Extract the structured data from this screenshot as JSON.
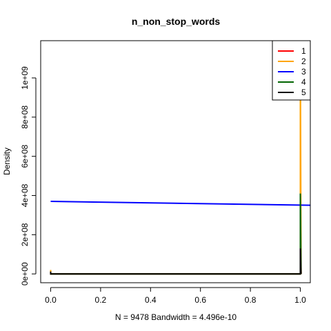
{
  "chart_data": {
    "type": "line",
    "title": "n_non_stop_words",
    "xlabel": "N = 9478   Bandwidth = 4.496e-10",
    "ylabel": "Density",
    "xlim": [
      -0.04,
      1.04
    ],
    "ylim": [
      -45000000,
      1190000000
    ],
    "x_ticks": [
      0.0,
      0.2,
      0.4,
      0.6,
      0.8,
      1.0
    ],
    "x_tick_labels": [
      "0.0",
      "0.2",
      "0.4",
      "0.6",
      "0.8",
      "1.0"
    ],
    "y_ticks": [
      0,
      200000000,
      400000000,
      600000000,
      800000000,
      1000000000
    ],
    "y_tick_labels": [
      "0e+00",
      "2e+08",
      "4e+08",
      "6e+08",
      "8e+08",
      "1e+09"
    ],
    "legend_position": "top-right",
    "series": [
      {
        "name": "1",
        "color": "#ff0000",
        "x": [
          0,
          0,
          0.003,
          0.997,
          1.0,
          1.0,
          1.003
        ],
        "y": [
          15000000,
          0,
          0,
          0,
          0,
          400000000,
          0
        ]
      },
      {
        "name": "2",
        "color": "#ffa500",
        "x": [
          0,
          0,
          0.003,
          0.997,
          1.0,
          1.0,
          1.003
        ],
        "y": [
          20000000,
          0,
          0,
          0,
          0,
          1190000000,
          0
        ]
      },
      {
        "name": "3",
        "color": "#0000ff",
        "x": [
          0,
          1.05
        ],
        "y": [
          370000000,
          350000000
        ]
      },
      {
        "name": "4",
        "color": "#006400",
        "x": [
          0,
          0,
          0.003,
          0.997,
          1.0,
          1.0,
          1.003
        ],
        "y": [
          10000000,
          0,
          0,
          0,
          0,
          410000000,
          0
        ]
      },
      {
        "name": "5",
        "color": "#000000",
        "x": [
          0,
          0,
          0.003,
          0.997,
          1.0,
          1.0,
          1.003
        ],
        "y": [
          12000000,
          0,
          0,
          0,
          0,
          130000000,
          0
        ]
      }
    ]
  }
}
